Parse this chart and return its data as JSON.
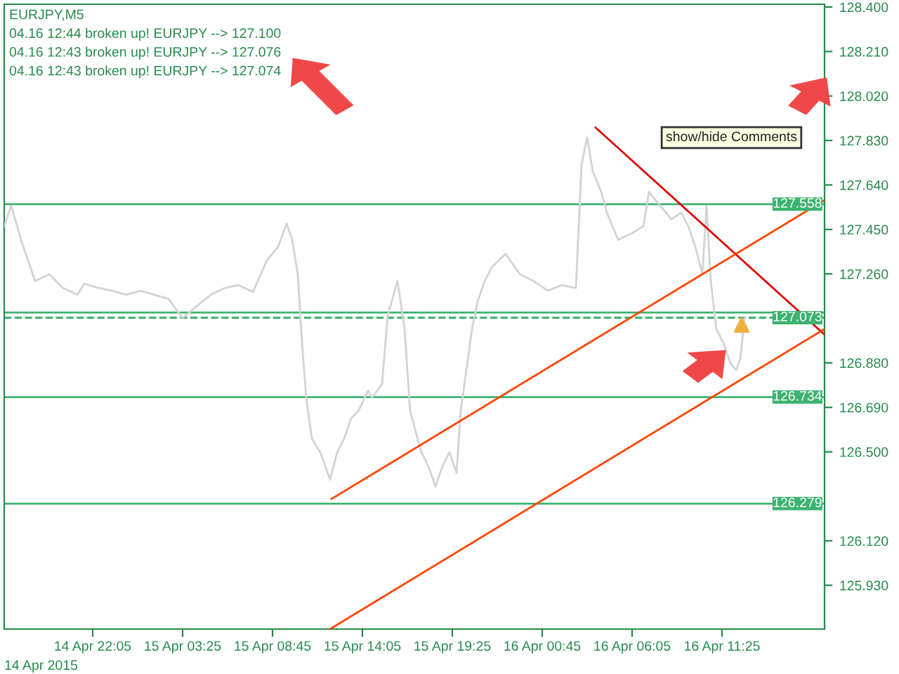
{
  "chart_data": {
    "type": "line",
    "annotations": [
      "EURJPY,M5",
      "04.16 12:44 broken up! EURJPY --> 127.100",
      "04.16 12:43 broken up! EURJPY --> 127.076",
      "04.16 12:43 broken up! EURJPY --> 127.074",
      "show/hide Comments",
      "14 Apr 2015"
    ],
    "xlim": [
      "2015-04-14T16:50",
      "2015-04-16T17:30"
    ],
    "xticks": [
      {
        "value": "2015-04-14T22:05",
        "label": "14 Apr 22:05"
      },
      {
        "value": "2015-04-15T03:25",
        "label": "15 Apr 03:25"
      },
      {
        "value": "2015-04-15T08:45",
        "label": "15 Apr 08:45"
      },
      {
        "value": "2015-04-15T14:05",
        "label": "15 Apr 14:05"
      },
      {
        "value": "2015-04-15T19:25",
        "label": "15 Apr 19:25"
      },
      {
        "value": "2015-04-16T00:45",
        "label": "16 Apr 00:45"
      },
      {
        "value": "2015-04-16T06:05",
        "label": "16 Apr 06:05"
      },
      {
        "value": "2015-04-16T11:25",
        "label": "16 Apr 11:25"
      }
    ],
    "ylim": [
      125.743,
      128.412
    ],
    "yticks": [
      {
        "value": 128.4,
        "label": "128.400"
      },
      {
        "value": 128.21,
        "label": "128.210"
      },
      {
        "value": 128.02,
        "label": "128.020"
      },
      {
        "value": 127.83,
        "label": "127.830"
      },
      {
        "value": 127.64,
        "label": "127.640"
      },
      {
        "value": 127.45,
        "label": "127.450"
      },
      {
        "value": 127.26,
        "label": "127.260"
      },
      {
        "value": 126.88,
        "label": "126.880"
      },
      {
        "value": 126.69,
        "label": "126.690"
      },
      {
        "value": 126.5,
        "label": "126.500"
      },
      {
        "value": 126.12,
        "label": "126.120"
      },
      {
        "value": 125.93,
        "label": "125.930"
      }
    ],
    "ref_lines": [
      {
        "axis": "y",
        "value": 127.558,
        "label": "127.558",
        "color": "#3cb371",
        "line_style": "solid"
      },
      {
        "axis": "y",
        "value": 127.095,
        "label": null,
        "color": "#3cb371",
        "line_style": "solid"
      },
      {
        "axis": "y",
        "value": 127.073,
        "label": "127.073",
        "color": "#3cb371",
        "line_style": "dashed"
      },
      {
        "axis": "y",
        "value": 126.734,
        "label": "126.734",
        "color": "#3cb371",
        "line_style": "solid"
      },
      {
        "axis": "y",
        "value": 126.279,
        "label": "126.279",
        "color": "#3cb371",
        "line_style": "solid"
      }
    ],
    "series": [
      {
        "color": "#d3d3d3",
        "x": [
          "2015-04-14T16:50",
          "2015-04-14T17:15",
          "2015-04-14T17:50",
          "2015-04-14T18:40",
          "2015-04-14T19:30",
          "2015-04-14T20:20",
          "2015-04-14T21:10",
          "2015-04-14T21:35",
          "2015-04-14T22:25",
          "2015-04-14T23:15",
          "2015-04-15T00:05",
          "2015-04-15T00:55",
          "2015-04-15T01:45",
          "2015-04-15T02:35",
          "2015-04-15T03:25",
          "2015-04-15T04:05",
          "2015-04-15T05:05",
          "2015-04-15T05:55",
          "2015-04-15T06:45",
          "2015-04-15T07:35",
          "2015-04-15T08:25",
          "2015-04-15T09:05",
          "2015-04-15T09:35",
          "2015-04-15T09:55",
          "2015-04-15T10:15",
          "2015-04-15T10:30",
          "2015-04-15T10:45",
          "2015-04-15T11:05",
          "2015-04-15T11:35",
          "2015-04-15T12:10",
          "2015-04-15T12:35",
          "2015-04-15T13:00",
          "2015-04-15T13:25",
          "2015-04-15T13:50",
          "2015-04-15T14:25",
          "2015-04-15T14:40",
          "2015-04-15T15:15",
          "2015-04-15T15:35",
          "2015-04-15T16:10",
          "2015-04-15T16:35",
          "2015-04-15T16:55",
          "2015-04-15T17:35",
          "2015-04-15T18:00",
          "2015-04-15T18:25",
          "2015-04-15T18:50",
          "2015-04-15T19:15",
          "2015-04-15T19:40",
          "2015-04-15T19:55",
          "2015-04-15T20:15",
          "2015-04-15T20:35",
          "2015-04-15T20:55",
          "2015-04-15T21:20",
          "2015-04-15T21:45",
          "2015-04-15T22:35",
          "2015-04-15T23:25",
          "2015-04-16T00:15",
          "2015-04-16T01:05",
          "2015-04-16T01:55",
          "2015-04-16T02:45",
          "2015-04-16T03:05",
          "2015-04-16T03:25",
          "2015-04-16T03:45",
          "2015-04-16T04:15",
          "2015-04-16T04:35",
          "2015-04-16T05:15",
          "2015-04-16T06:05",
          "2015-04-16T06:45",
          "2015-04-16T07:05",
          "2015-04-16T07:45",
          "2015-04-16T08:25",
          "2015-04-16T09:00",
          "2015-04-16T09:25",
          "2015-04-16T09:50",
          "2015-04-16T10:15",
          "2015-04-16T10:30",
          "2015-04-16T10:45",
          "2015-04-16T11:05",
          "2015-04-16T11:30",
          "2015-04-16T11:55",
          "2015-04-16T12:15",
          "2015-04-16T12:30",
          "2015-04-16T12:45"
        ],
        "values": [
          127.464,
          127.551,
          127.405,
          127.229,
          127.259,
          127.2,
          127.171,
          127.218,
          127.2,
          127.188,
          127.171,
          127.188,
          127.171,
          127.153,
          127.071,
          127.112,
          127.171,
          127.2,
          127.212,
          127.183,
          127.317,
          127.376,
          127.475,
          127.405,
          127.259,
          126.966,
          126.732,
          126.556,
          126.498,
          126.381,
          126.498,
          126.556,
          126.644,
          126.673,
          126.761,
          126.732,
          126.79,
          127.083,
          127.229,
          127.025,
          126.673,
          126.498,
          126.439,
          126.352,
          126.439,
          126.498,
          126.41,
          126.673,
          126.849,
          127.025,
          127.142,
          127.229,
          127.288,
          127.346,
          127.259,
          127.229,
          127.188,
          127.212,
          127.2,
          127.727,
          127.844,
          127.698,
          127.61,
          127.522,
          127.405,
          127.434,
          127.464,
          127.61,
          127.551,
          127.493,
          127.522,
          127.464,
          127.376,
          127.259,
          127.551,
          127.229,
          127.025,
          126.966,
          126.878,
          126.849,
          126.896,
          127.071
        ]
      },
      {
        "color": "#e00000",
        "x": [
          "2015-04-16T03:55",
          "2015-04-16T17:30"
        ],
        "values": [
          127.885,
          127.001
        ]
      },
      {
        "color": "#ff4500",
        "x": [
          "2015-04-15T12:15",
          "2015-04-16T17:30"
        ],
        "values": [
          126.299,
          127.575
        ]
      },
      {
        "color": "#ff4500",
        "x": [
          "2015-04-15T12:10",
          "2015-04-16T17:30"
        ],
        "values": [
          125.743,
          127.025
        ]
      },
      {
        "type": "scatter",
        "color": "#f0b040",
        "marker": "triangle",
        "x": [
          "2015-04-16T12:35"
        ],
        "values": [
          127.042
        ]
      }
    ]
  }
}
